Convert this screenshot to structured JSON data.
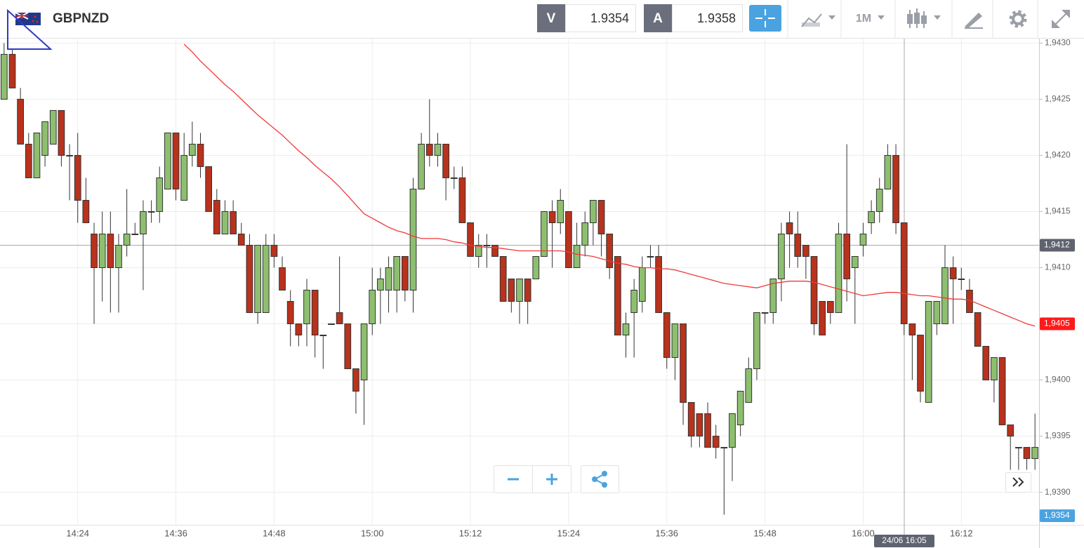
{
  "header": {
    "symbol": "GBPNZD",
    "bid_label": "V",
    "bid": "1.9354",
    "ask_label": "A",
    "ask": "1.9358",
    "timeframe": "1M"
  },
  "chart_data": {
    "type": "candlestick",
    "categories": [
      null,
      null,
      null,
      null,
      null,
      null,
      null,
      null,
      null,
      "14:24",
      null,
      null,
      null,
      null,
      null,
      null,
      null,
      null,
      null,
      null,
      null,
      "14:36",
      null,
      null,
      null,
      null,
      null,
      null,
      null,
      null,
      null,
      null,
      null,
      "14:48",
      null,
      null,
      null,
      null,
      null,
      null,
      null,
      null,
      null,
      null,
      null,
      "15:00",
      null,
      null,
      null,
      null,
      null,
      null,
      null,
      null,
      null,
      null,
      null,
      "15:12",
      null,
      null,
      null,
      null,
      null,
      null,
      null,
      null,
      null,
      null,
      null,
      "15:24",
      null,
      null,
      null,
      null,
      null,
      null,
      null,
      null,
      null,
      null,
      null,
      "15:36",
      null,
      null,
      null,
      null,
      null,
      null,
      null,
      null,
      null,
      null,
      null,
      "15:48",
      null,
      null,
      null,
      null,
      null,
      null,
      null,
      null,
      null,
      null,
      null,
      "16:00",
      null,
      null,
      null,
      null,
      null,
      null,
      null,
      null,
      null,
      null,
      null,
      "16:12",
      null,
      null,
      null,
      null,
      null,
      null,
      null,
      null,
      null
    ],
    "open": [
      1.9425,
      1.9429,
      1.9425,
      1.9421,
      1.9418,
      1.942,
      1.9421,
      1.9424,
      1.942,
      1.942,
      1.9416,
      1.9413,
      1.941,
      1.9413,
      1.941,
      1.9412,
      1.9413,
      1.9413,
      1.9415,
      1.9415,
      1.9417,
      1.9422,
      1.9416,
      1.942,
      1.9421,
      1.9419,
      1.9416,
      1.9413,
      1.9415,
      1.9413,
      1.9412,
      1.9406,
      1.9406,
      1.9412,
      1.941,
      1.9407,
      1.9405,
      1.9405,
      1.9408,
      1.9404,
      1.9405,
      1.9406,
      1.9405,
      1.9401,
      1.94,
      1.9405,
      1.9408,
      1.9408,
      1.9408,
      1.9411,
      1.9408,
      1.9417,
      1.9421,
      1.942,
      1.9421,
      1.9418,
      1.9418,
      1.9414,
      1.9411,
      1.9412,
      1.9412,
      1.9411,
      1.9409,
      1.9407,
      1.9409,
      1.9409,
      1.9411,
      1.9415,
      1.9414,
      1.9415,
      1.941,
      1.9412,
      1.9414,
      1.9416,
      1.9413,
      1.9411,
      1.9404,
      1.9406,
      1.9407,
      1.9411,
      1.9411,
      1.9406,
      1.9402,
      1.9405,
      1.9398,
      1.9397,
      1.9397,
      1.9395,
      1.9394,
      1.9394,
      1.9396,
      1.9398,
      1.9401,
      1.9406,
      1.9406,
      1.9409,
      1.9414,
      1.9413,
      1.9412,
      1.9411,
      1.9407,
      1.9407,
      1.9406,
      1.9413,
      1.941,
      1.9412,
      1.9414,
      1.9415,
      1.9417,
      1.942,
      1.9414,
      1.9405,
      1.9404,
      1.9398,
      1.9405,
      1.9405,
      1.941,
      1.9409,
      1.9408,
      1.9406,
      1.9403,
      1.94,
      1.9402,
      1.9396,
      1.9394,
      1.9394,
      1.9393
    ],
    "high": [
      1.943,
      1.94295,
      1.9426,
      1.9422,
      1.9422,
      1.9423,
      1.9424,
      1.9424,
      1.9421,
      1.9422,
      1.9418,
      1.9414,
      1.9415,
      1.9415,
      1.9413,
      1.9417,
      1.9414,
      1.9416,
      1.9416,
      1.9419,
      1.9422,
      1.9422,
      1.9422,
      1.9423,
      1.9422,
      1.9419,
      1.9417,
      1.9416,
      1.9416,
      1.9414,
      1.9413,
      1.9412,
      1.9413,
      1.9413,
      1.9411,
      1.9408,
      1.9405,
      1.9409,
      1.9408,
      1.9404,
      1.9405,
      1.9411,
      1.9405,
      1.9401,
      1.9405,
      1.941,
      1.941,
      1.9411,
      1.9411,
      1.9411,
      1.9418,
      1.9422,
      1.9425,
      1.9422,
      1.9421,
      1.9419,
      1.9419,
      1.9414,
      1.9413,
      1.9413,
      1.9412,
      1.9411,
      1.9409,
      1.9409,
      1.9409,
      1.9411,
      1.9415,
      1.9416,
      1.9417,
      1.9415,
      1.9414,
      1.9415,
      1.9416,
      1.9416,
      1.9413,
      1.9411,
      1.9406,
      1.9409,
      1.9411,
      1.9412,
      1.9412,
      1.9406,
      1.9405,
      1.9405,
      1.9398,
      1.9397,
      1.9398,
      1.9396,
      1.9394,
      1.9397,
      1.9399,
      1.9402,
      1.9406,
      1.9406,
      1.9409,
      1.9414,
      1.9415,
      1.9415,
      1.9412,
      1.9411,
      1.9407,
      1.9407,
      1.9414,
      1.9421,
      1.9411,
      1.9414,
      1.9416,
      1.9418,
      1.9421,
      1.9421,
      1.9414,
      1.9405,
      1.9404,
      1.9407,
      1.9407,
      1.9412,
      1.9411,
      1.941,
      1.9409,
      1.9406,
      1.9403,
      1.9402,
      1.9402,
      1.9396,
      1.9394,
      1.9394,
      1.9397
    ],
    "low": [
      1.9425,
      1.9426,
      1.9421,
      1.9418,
      1.9418,
      1.9419,
      1.9421,
      1.9419,
      1.9416,
      1.9414,
      1.9414,
      1.9405,
      1.9407,
      1.9406,
      1.9406,
      1.9411,
      1.9413,
      1.9408,
      1.9414,
      1.9414,
      1.9417,
      1.9416,
      1.9416,
      1.9419,
      1.9418,
      1.9415,
      1.9413,
      1.9413,
      1.9413,
      1.9412,
      1.9406,
      1.9405,
      1.9406,
      1.941,
      1.9408,
      1.9403,
      1.9403,
      1.9403,
      1.9402,
      1.9401,
      1.9405,
      1.9405,
      1.9401,
      1.9397,
      1.9396,
      1.9404,
      1.9405,
      1.9406,
      1.9406,
      1.9407,
      1.9406,
      1.9417,
      1.9419,
      1.9419,
      1.9416,
      1.9417,
      1.9414,
      1.9411,
      1.941,
      1.941,
      1.9411,
      1.9407,
      1.9406,
      1.9405,
      1.9405,
      1.9409,
      1.9411,
      1.941,
      1.9413,
      1.941,
      1.941,
      1.9411,
      1.9412,
      1.9411,
      1.9409,
      1.9404,
      1.9402,
      1.9402,
      1.9406,
      1.941,
      1.9406,
      1.9401,
      1.94,
      1.9396,
      1.9394,
      1.9394,
      1.9394,
      1.9393,
      1.9388,
      1.9391,
      1.9395,
      1.9398,
      1.94,
      1.9405,
      1.9405,
      1.9407,
      1.941,
      1.941,
      1.9409,
      1.9404,
      1.9404,
      1.9405,
      1.9406,
      1.9407,
      1.9405,
      1.9411,
      1.9413,
      1.9414,
      1.9417,
      1.9413,
      1.9404,
      1.94,
      1.9398,
      1.9398,
      1.9404,
      1.9405,
      1.9405,
      1.9408,
      1.9406,
      1.9403,
      1.94,
      1.9398,
      1.9396,
      1.9392,
      1.9392,
      1.9392,
      1.9392
    ],
    "close": [
      1.9429,
      1.9426,
      1.9421,
      1.9418,
      1.9422,
      1.9423,
      1.9424,
      1.942,
      1.942,
      1.9416,
      1.9414,
      1.941,
      1.9413,
      1.941,
      1.9412,
      1.9413,
      1.9413,
      1.9415,
      1.9415,
      1.9418,
      1.9422,
      1.9417,
      1.942,
      1.9421,
      1.9419,
      1.9415,
      1.9413,
      1.9415,
      1.9413,
      1.9412,
      1.9406,
      1.9412,
      1.9412,
      1.9411,
      1.9408,
      1.9405,
      1.9404,
      1.9408,
      1.9404,
      1.9404,
      1.9405,
      1.9405,
      1.9401,
      1.9399,
      1.9405,
      1.9408,
      1.9409,
      1.941,
      1.9411,
      1.9408,
      1.9417,
      1.9421,
      1.942,
      1.9421,
      1.9418,
      1.9418,
      1.9414,
      1.9411,
      1.9412,
      1.9412,
      1.9411,
      1.9407,
      1.9407,
      1.9409,
      1.9407,
      1.9411,
      1.9415,
      1.9414,
      1.9416,
      1.941,
      1.9412,
      1.9414,
      1.9416,
      1.9413,
      1.941,
      1.9404,
      1.9405,
      1.9408,
      1.941,
      1.9411,
      1.9406,
      1.9402,
      1.9405,
      1.9398,
      1.9395,
      1.9395,
      1.9394,
      1.9394,
      1.9394,
      1.9397,
      1.9399,
      1.9401,
      1.9406,
      1.9406,
      1.9409,
      1.9413,
      1.9413,
      1.9411,
      1.9411,
      1.9405,
      1.9404,
      1.9406,
      1.9413,
      1.9409,
      1.9411,
      1.9413,
      1.9415,
      1.9417,
      1.942,
      1.9414,
      1.9405,
      1.9404,
      1.9399,
      1.9407,
      1.9407,
      1.941,
      1.9409,
      1.9409,
      1.9406,
      1.9403,
      1.94,
      1.9402,
      1.9396,
      1.9395,
      1.9394,
      1.9393,
      1.9394
    ],
    "up_color": "#8dbf6f",
    "down_color": "#b8321c",
    "overlay": {
      "color": "#f03a3a",
      "values": [
        null,
        null,
        null,
        null,
        null,
        null,
        null,
        null,
        null,
        null,
        null,
        null,
        null,
        null,
        null,
        null,
        null,
        null,
        null,
        null,
        null,
        null,
        1.94299,
        1.94292,
        1.94284,
        1.94277,
        1.9427,
        1.94263,
        1.94257,
        1.9425,
        1.94243,
        1.94236,
        1.9423,
        1.94224,
        1.94218,
        1.94211,
        1.94204,
        1.94198,
        1.94191,
        1.94185,
        1.94179,
        1.94172,
        1.94164,
        1.94156,
        1.94148,
        1.94144,
        1.9414,
        1.94136,
        1.94133,
        1.94131,
        1.94128,
        1.94126,
        1.94126,
        1.94126,
        1.94125,
        1.94123,
        1.94122,
        1.9412,
        1.94119,
        1.94118,
        1.94118,
        1.94117,
        1.94116,
        1.94115,
        1.94115,
        1.94115,
        1.94115,
        1.94115,
        1.94115,
        1.94114,
        1.94112,
        1.94111,
        1.9411,
        1.94108,
        1.94106,
        1.94104,
        1.94103,
        1.94101,
        1.941,
        1.941,
        1.94099,
        1.94099,
        1.94098,
        1.94096,
        1.94094,
        1.94092,
        1.9409,
        1.94088,
        1.94086,
        1.94085,
        1.94084,
        1.94083,
        1.94082,
        1.94084,
        1.94086,
        1.94087,
        1.94088,
        1.94088,
        1.94088,
        1.94087,
        1.94085,
        1.94083,
        1.94081,
        1.94079,
        1.94077,
        1.94075,
        1.94076,
        1.94077,
        1.94078,
        1.94078,
        1.94077,
        1.94076,
        1.94075,
        1.94075,
        1.94074,
        1.94073,
        1.94072,
        1.94072,
        1.94071,
        1.94068,
        1.94065,
        1.94062,
        1.94059,
        1.94056,
        1.94053,
        1.9405,
        1.94048
      ]
    },
    "ylim": [
      1.93871,
      1.94304
    ],
    "yticks": [
      {
        "value": 1.943,
        "label": "1,9430"
      },
      {
        "value": 1.9425,
        "label": "1,9425"
      },
      {
        "value": 1.942,
        "label": "1,9420"
      },
      {
        "value": 1.9415,
        "label": "1,9415"
      },
      {
        "value": 1.941,
        "label": "1,9410"
      },
      {
        "value": 1.9405,
        "label": "1,9405"
      },
      {
        "value": 1.94,
        "label": "1,9400"
      },
      {
        "value": 1.9395,
        "label": "1,9395"
      },
      {
        "value": 1.939,
        "label": "1,9390"
      }
    ],
    "grid": true,
    "crosshair": {
      "value": 1.9412,
      "label": "1,9412"
    },
    "crosshair_time": "24/06 16:05",
    "overlay_label": {
      "value": 1.9405,
      "label": "1,9405"
    },
    "last_price_label": "1,9354"
  }
}
